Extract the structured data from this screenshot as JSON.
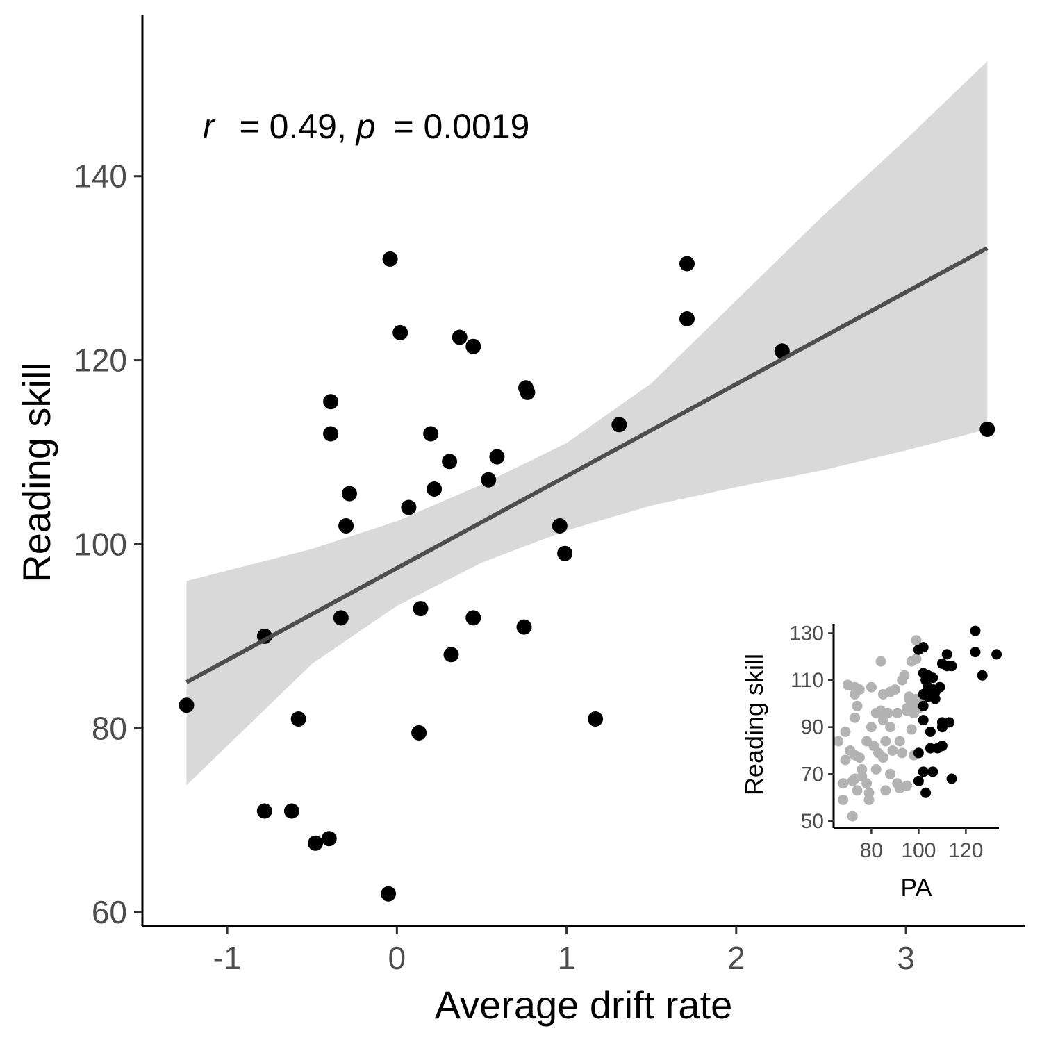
{
  "chart_data": [
    {
      "type": "scatter",
      "xlabel": "Average drift rate",
      "ylabel": "Reading skill",
      "xlim": [
        -1.5,
        3.7
      ],
      "ylim": [
        58.5,
        157.5
      ],
      "x_ticks": [
        -1,
        0,
        1,
        2,
        3
      ],
      "x_tick_labels": [
        "-1",
        "0",
        "1",
        "2",
        "3"
      ],
      "y_ticks": [
        60,
        80,
        100,
        120,
        140
      ],
      "y_tick_labels": [
        "60",
        "80",
        "100",
        "120",
        "140"
      ],
      "grid": false,
      "annotation": {
        "r_symbol": "r",
        "r_text": " = 0.49, ",
        "p_symbol": "p",
        "p_text": " = 0.0019"
      },
      "colors": {
        "points": "#000000",
        "fit_line": "#474747",
        "confidence_band": "#d9d9d9",
        "axis": "#000000",
        "tick_label": "#4d4d4d"
      },
      "fit_line": {
        "x": [
          -1.24,
          3.48
        ],
        "y": [
          85.0,
          132.2
        ]
      },
      "confidence_band": {
        "x": [
          -1.24,
          -0.5,
          0.0,
          0.5,
          1.0,
          1.5,
          2.0,
          2.5,
          3.0,
          3.48
        ],
        "lower": [
          73.8,
          87.0,
          93.3,
          98.0,
          101.5,
          104.2,
          106.2,
          108.0,
          110.2,
          112.5
        ],
        "upper": [
          96.0,
          99.5,
          102.5,
          106.5,
          111.0,
          117.5,
          126.5,
          135.5,
          144.0,
          152.5
        ]
      },
      "points": [
        {
          "x": -1.24,
          "y": 82.5
        },
        {
          "x": -0.78,
          "y": 90
        },
        {
          "x": -0.78,
          "y": 71
        },
        {
          "x": -0.62,
          "y": 71
        },
        {
          "x": -0.58,
          "y": 81
        },
        {
          "x": -0.48,
          "y": 67.5
        },
        {
          "x": -0.4,
          "y": 68
        },
        {
          "x": -0.39,
          "y": 115.5
        },
        {
          "x": -0.39,
          "y": 112
        },
        {
          "x": -0.33,
          "y": 92
        },
        {
          "x": -0.3,
          "y": 102
        },
        {
          "x": -0.28,
          "y": 105.5
        },
        {
          "x": -0.05,
          "y": 62
        },
        {
          "x": -0.04,
          "y": 131
        },
        {
          "x": 0.02,
          "y": 123
        },
        {
          "x": 0.07,
          "y": 104
        },
        {
          "x": 0.13,
          "y": 79.5
        },
        {
          "x": 0.14,
          "y": 93
        },
        {
          "x": 0.2,
          "y": 112
        },
        {
          "x": 0.22,
          "y": 106
        },
        {
          "x": 0.31,
          "y": 109
        },
        {
          "x": 0.32,
          "y": 88
        },
        {
          "x": 0.37,
          "y": 122.5
        },
        {
          "x": 0.45,
          "y": 121.5
        },
        {
          "x": 0.45,
          "y": 92
        },
        {
          "x": 0.54,
          "y": 107
        },
        {
          "x": 0.59,
          "y": 109.5
        },
        {
          "x": 0.75,
          "y": 91
        },
        {
          "x": 0.76,
          "y": 117
        },
        {
          "x": 0.77,
          "y": 116.5
        },
        {
          "x": 0.96,
          "y": 102
        },
        {
          "x": 0.99,
          "y": 99
        },
        {
          "x": 1.17,
          "y": 81
        },
        {
          "x": 1.31,
          "y": 113
        },
        {
          "x": 1.71,
          "y": 130.5
        },
        {
          "x": 1.71,
          "y": 124.5
        },
        {
          "x": 2.27,
          "y": 121
        },
        {
          "x": 3.48,
          "y": 112.5
        }
      ]
    },
    {
      "type": "scatter",
      "xlabel": "PA",
      "ylabel": "Reading skill",
      "xlim": [
        64,
        134
      ],
      "ylim": [
        47,
        134
      ],
      "x_ticks": [
        80,
        100,
        120
      ],
      "x_tick_labels": [
        "80",
        "100",
        "120"
      ],
      "y_ticks": [
        50,
        70,
        90,
        110,
        130
      ],
      "y_tick_labels": [
        "50",
        "70",
        "90",
        "110",
        "130"
      ],
      "grid": false,
      "colors": {
        "gray_points": "#b3b3b3",
        "black_points": "#000000"
      },
      "series": [
        {
          "color": "gray",
          "points": [
            {
              "x": 66,
              "y": 84
            },
            {
              "x": 68,
              "y": 66
            },
            {
              "x": 68,
              "y": 59
            },
            {
              "x": 69,
              "y": 88
            },
            {
              "x": 69,
              "y": 76
            },
            {
              "x": 70,
              "y": 108
            },
            {
              "x": 71,
              "y": 80
            },
            {
              "x": 72,
              "y": 67
            },
            {
              "x": 72,
              "y": 52
            },
            {
              "x": 73,
              "y": 107
            },
            {
              "x": 73,
              "y": 104
            },
            {
              "x": 73,
              "y": 94
            },
            {
              "x": 73,
              "y": 78
            },
            {
              "x": 73,
              "y": 68
            },
            {
              "x": 74,
              "y": 63
            },
            {
              "x": 74,
              "y": 99
            },
            {
              "x": 75,
              "y": 106
            },
            {
              "x": 75,
              "y": 77
            },
            {
              "x": 76,
              "y": 69
            },
            {
              "x": 76,
              "y": 72
            },
            {
              "x": 78,
              "y": 66
            },
            {
              "x": 78,
              "y": 84
            },
            {
              "x": 79,
              "y": 62
            },
            {
              "x": 79,
              "y": 59
            },
            {
              "x": 80,
              "y": 107
            },
            {
              "x": 80,
              "y": 90
            },
            {
              "x": 81,
              "y": 82
            },
            {
              "x": 82,
              "y": 96
            },
            {
              "x": 82,
              "y": 72
            },
            {
              "x": 83,
              "y": 79
            },
            {
              "x": 84,
              "y": 118
            },
            {
              "x": 84,
              "y": 97
            },
            {
              "x": 85,
              "y": 104
            },
            {
              "x": 85,
              "y": 93
            },
            {
              "x": 85,
              "y": 77
            },
            {
              "x": 86,
              "y": 84
            },
            {
              "x": 86,
              "y": 63
            },
            {
              "x": 87,
              "y": 96
            },
            {
              "x": 88,
              "y": 105
            },
            {
              "x": 88,
              "y": 90
            },
            {
              "x": 88,
              "y": 70
            },
            {
              "x": 89,
              "y": 80
            },
            {
              "x": 90,
              "y": 106
            },
            {
              "x": 91,
              "y": 96
            },
            {
              "x": 91,
              "y": 66
            },
            {
              "x": 92,
              "y": 84
            },
            {
              "x": 92,
              "y": 64
            },
            {
              "x": 93,
              "y": 110
            },
            {
              "x": 93,
              "y": 79
            },
            {
              "x": 94,
              "y": 112
            },
            {
              "x": 95,
              "y": 98
            },
            {
              "x": 95,
              "y": 97
            },
            {
              "x": 95,
              "y": 65
            },
            {
              "x": 96,
              "y": 102
            },
            {
              "x": 96,
              "y": 103
            },
            {
              "x": 97,
              "y": 118
            },
            {
              "x": 97,
              "y": 89
            },
            {
              "x": 98,
              "y": 100
            },
            {
              "x": 98,
              "y": 96
            },
            {
              "x": 98,
              "y": 78
            },
            {
              "x": 99,
              "y": 127
            },
            {
              "x": 99,
              "y": 119
            },
            {
              "x": 99,
              "y": 102
            },
            {
              "x": 100,
              "y": 98
            },
            {
              "x": 101,
              "y": 100
            }
          ]
        },
        {
          "color": "black",
          "points": [
            {
              "x": 100,
              "y": 123
            },
            {
              "x": 100,
              "y": 79
            },
            {
              "x": 100,
              "y": 67
            },
            {
              "x": 102,
              "y": 124
            },
            {
              "x": 102,
              "y": 113
            },
            {
              "x": 102,
              "y": 104
            },
            {
              "x": 102,
              "y": 99
            },
            {
              "x": 102,
              "y": 93
            },
            {
              "x": 102,
              "y": 71
            },
            {
              "x": 103,
              "y": 62
            },
            {
              "x": 103,
              "y": 110
            },
            {
              "x": 104,
              "y": 112
            },
            {
              "x": 104,
              "y": 107
            },
            {
              "x": 104,
              "y": 103
            },
            {
              "x": 105,
              "y": 88
            },
            {
              "x": 105,
              "y": 81
            },
            {
              "x": 106,
              "y": 111
            },
            {
              "x": 106,
              "y": 106
            },
            {
              "x": 106,
              "y": 71
            },
            {
              "x": 107,
              "y": 102
            },
            {
              "x": 107,
              "y": 105
            },
            {
              "x": 108,
              "y": 81
            },
            {
              "x": 109,
              "y": 107
            },
            {
              "x": 110,
              "y": 117
            },
            {
              "x": 110,
              "y": 92
            },
            {
              "x": 110,
              "y": 90
            },
            {
              "x": 110,
              "y": 82
            },
            {
              "x": 112,
              "y": 121
            },
            {
              "x": 112,
              "y": 116
            },
            {
              "x": 113,
              "y": 92
            },
            {
              "x": 114,
              "y": 116
            },
            {
              "x": 114,
              "y": 68
            },
            {
              "x": 124,
              "y": 131
            },
            {
              "x": 124,
              "y": 122
            },
            {
              "x": 127,
              "y": 112
            },
            {
              "x": 133,
              "y": 121
            }
          ]
        }
      ]
    }
  ]
}
